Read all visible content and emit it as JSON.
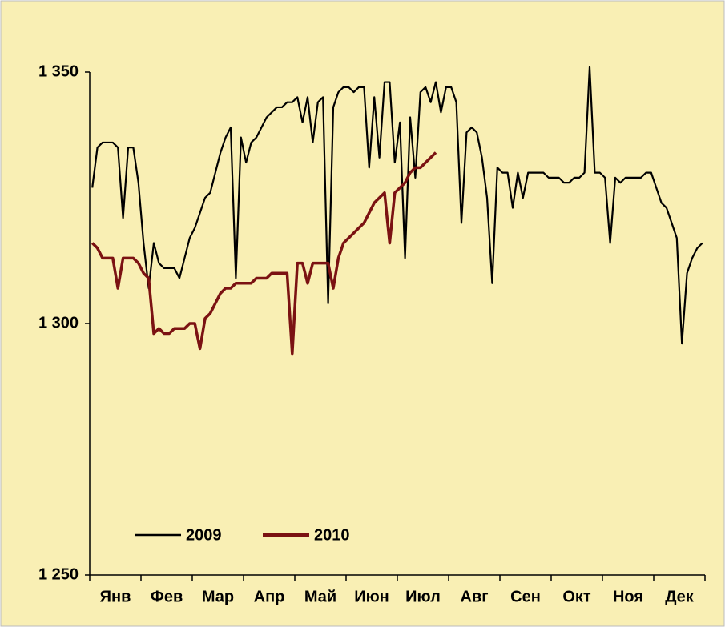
{
  "chart_data": {
    "type": "line",
    "categories": [
      null,
      null,
      null,
      null,
      null,
      "Янв",
      null,
      null,
      null,
      null,
      null,
      null,
      null,
      null,
      null,
      "Фев",
      null,
      null,
      null,
      null,
      null,
      null,
      null,
      null,
      null,
      "Мар",
      null,
      null,
      null,
      null,
      null,
      null,
      null,
      null,
      null,
      "Апр",
      null,
      null,
      null,
      null,
      null,
      null,
      null,
      null,
      null,
      "Май",
      null,
      null,
      null,
      null,
      null,
      null,
      null,
      null,
      null,
      "Июн",
      null,
      null,
      null,
      null,
      null,
      null,
      null,
      null,
      null,
      "Июл",
      null,
      null,
      null,
      null,
      null,
      null,
      null,
      null,
      null,
      "Авг",
      null,
      null,
      null,
      null,
      null,
      null,
      null,
      null,
      null,
      "Сен",
      null,
      null,
      null,
      null,
      null,
      null,
      null,
      null,
      null,
      "Окт",
      null,
      null,
      null,
      null,
      null,
      null,
      null,
      null,
      null,
      "Ноя",
      null,
      null,
      null,
      null,
      null,
      null,
      null,
      null,
      null,
      "Дек",
      null,
      null,
      null,
      null
    ],
    "series": [
      {
        "name": "2009",
        "color": "#000000",
        "values": [
          1327,
          1335,
          1336,
          1336,
          1336,
          1335,
          1321,
          1335,
          1335,
          1328,
          1316,
          1307,
          1316,
          1312,
          1311,
          1311,
          1311,
          1309,
          1313,
          1317,
          1319,
          1322,
          1325,
          1326,
          1330,
          1334,
          1337,
          1339,
          1309,
          1337,
          1332,
          1336,
          1337,
          1339,
          1341,
          1342,
          1343,
          1343,
          1344,
          1344,
          1345,
          1340,
          1345,
          1336,
          1344,
          1345,
          1304,
          1343,
          1346,
          1347,
          1347,
          1346,
          1347,
          1347,
          1331,
          1345,
          1333,
          1348,
          1348,
          1332,
          1340,
          1313,
          1341,
          1329,
          1346,
          1347,
          1344,
          1348,
          1342,
          1347,
          1347,
          1344,
          1320,
          1338,
          1339,
          1338,
          1333,
          1325,
          1308,
          1331,
          1330,
          1330,
          1323,
          1330,
          1325,
          1330,
          1330,
          1330,
          1330,
          1329,
          1329,
          1329,
          1328,
          1328,
          1329,
          1329,
          1330,
          1351,
          1330,
          1330,
          1329,
          1316,
          1329,
          1328,
          1329,
          1329,
          1329,
          1329,
          1330,
          1330,
          1327,
          1324,
          1323,
          1320,
          1317,
          1296,
          1310,
          1313,
          1315,
          1316
        ]
      },
      {
        "name": "2010",
        "color": "#7b1212",
        "values": [
          1316,
          1315,
          1313,
          1313,
          1313,
          1307,
          1313,
          1313,
          1313,
          1312,
          1310,
          1309,
          1298,
          1299,
          1298,
          1298,
          1299,
          1299,
          1299,
          1300,
          1300,
          1295,
          1301,
          1302,
          1304,
          1306,
          1307,
          1307,
          1308,
          1308,
          1308,
          1308,
          1309,
          1309,
          1309,
          1310,
          1310,
          1310,
          1310,
          1294,
          1312,
          1312,
          1308,
          1312,
          1312,
          1312,
          1312,
          1307,
          1313,
          1316,
          1317,
          1318,
          1319,
          1320,
          1322,
          1324,
          1325,
          1326,
          1316,
          1326,
          1327,
          1328,
          1330,
          1331,
          1331,
          1332,
          1333,
          1334,
          null,
          null,
          null,
          null,
          null,
          null,
          null,
          null,
          null,
          null,
          null,
          null,
          null,
          null,
          null,
          null,
          null,
          null,
          null,
          null,
          null,
          null,
          null,
          null,
          null,
          null,
          null,
          null,
          null,
          null,
          null,
          null,
          null,
          null,
          null,
          null,
          null,
          null,
          null,
          null,
          null,
          null,
          null,
          null,
          null,
          null,
          null,
          null,
          null,
          null,
          null,
          null
        ]
      }
    ],
    "ylim": [
      1250,
      1350
    ],
    "yticks": [
      {
        "value": 1250,
        "label": "1 250"
      },
      {
        "value": 1300,
        "label": "1 300"
      },
      {
        "value": 1350,
        "label": "1 350"
      }
    ],
    "legend": "lower left"
  }
}
